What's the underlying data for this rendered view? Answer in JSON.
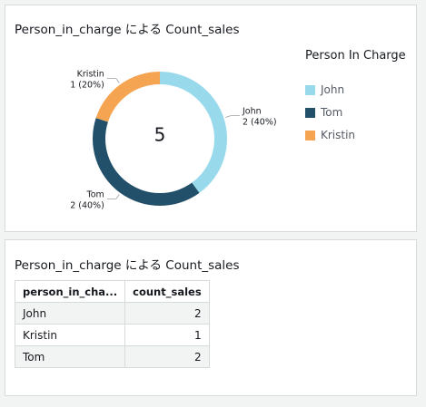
{
  "donut_card": {
    "title": "Person_in_charge による Count_sales",
    "center_value": "5",
    "legend_title": "Person In Charge"
  },
  "chart_data": {
    "type": "pie",
    "style": "donut",
    "title": "Person_in_charge による Count_sales",
    "center_label": "5",
    "legend_title": "Person In Charge",
    "legend_position": "right",
    "slices": [
      {
        "name": "John",
        "value": 2,
        "label": "John",
        "value_label": "2 (40%)",
        "color": "#98d9ec"
      },
      {
        "name": "Tom",
        "value": 2,
        "label": "Tom",
        "value_label": "2 (40%)",
        "color": "#22506a"
      },
      {
        "name": "Kristin",
        "value": 1,
        "label": "Kristin",
        "value_label": "1 (20%)",
        "color": "#f5a552"
      }
    ]
  },
  "table_card": {
    "title": "Person_in_charge による Count_sales",
    "columns": [
      "person_in_cha...",
      "count_sales"
    ],
    "rows": [
      [
        "John",
        "2"
      ],
      [
        "Kristin",
        "1"
      ],
      [
        "Tom",
        "2"
      ]
    ]
  }
}
